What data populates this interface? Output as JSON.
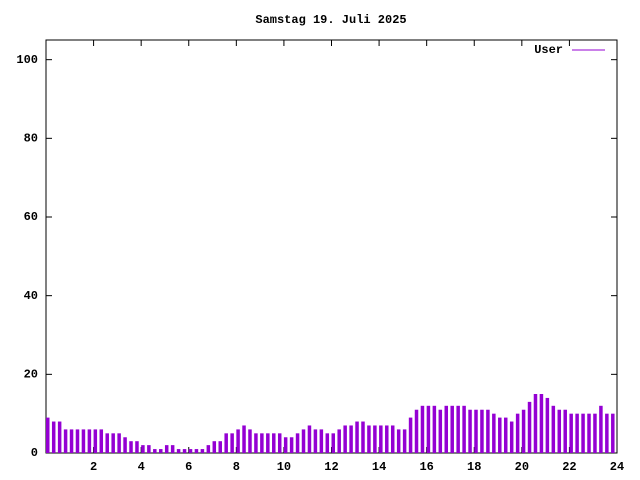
{
  "chart_data": {
    "type": "impulses",
    "title": "Samstag 19. Juli 2025",
    "series": [
      {
        "name": "User",
        "color": "#9400d3",
        "x": [
          0,
          0.25,
          0.5,
          0.75,
          1,
          1.25,
          1.5,
          1.75,
          2,
          2.25,
          2.5,
          2.75,
          3,
          3.25,
          3.5,
          3.75,
          4,
          4.25,
          4.5,
          4.75,
          5,
          5.25,
          5.5,
          5.75,
          6,
          6.25,
          6.5,
          6.75,
          7,
          7.25,
          7.5,
          7.75,
          8,
          8.25,
          8.5,
          8.75,
          9,
          9.25,
          9.5,
          9.75,
          10,
          10.25,
          10.5,
          10.75,
          11,
          11.25,
          11.5,
          11.75,
          12,
          12.25,
          12.5,
          12.75,
          13,
          13.25,
          13.5,
          13.75,
          14,
          14.25,
          14.5,
          14.75,
          15,
          15.25,
          15.5,
          15.75,
          16,
          16.25,
          16.5,
          16.75,
          17,
          17.25,
          17.5,
          17.75,
          18,
          18.25,
          18.5,
          18.75,
          19,
          19.25,
          19.5,
          19.75,
          20,
          20.25,
          20.5,
          20.75,
          21,
          21.25,
          21.5,
          21.75,
          22,
          22.25,
          22.5,
          22.75,
          23,
          23.25,
          23.5,
          23.75
        ],
        "values": [
          9,
          8,
          8,
          6,
          6,
          6,
          6,
          6,
          6,
          6,
          5,
          5,
          5,
          4,
          3,
          3,
          2,
          2,
          1,
          1,
          2,
          2,
          1,
          1,
          1,
          1,
          1,
          2,
          3,
          3,
          5,
          5,
          6,
          7,
          6,
          5,
          5,
          5,
          5,
          5,
          4,
          4,
          5,
          6,
          7,
          6,
          6,
          5,
          5,
          6,
          7,
          7,
          8,
          8,
          7,
          7,
          7,
          7,
          7,
          6,
          6,
          9,
          11,
          12,
          12,
          12,
          11,
          12,
          12,
          12,
          12,
          11,
          11,
          11,
          11,
          10,
          9,
          9,
          8,
          10,
          11,
          13,
          15,
          15,
          14,
          12,
          11,
          11,
          10,
          10,
          10,
          10,
          10,
          12,
          10,
          10
        ]
      }
    ],
    "xlim": [
      0,
      24
    ],
    "xticks": [
      2,
      4,
      6,
      8,
      10,
      12,
      14,
      16,
      18,
      20,
      22,
      24
    ],
    "ylim": [
      0,
      105
    ],
    "yticks": [
      0,
      20,
      40,
      60,
      80,
      100
    ],
    "legend": "top-right"
  }
}
